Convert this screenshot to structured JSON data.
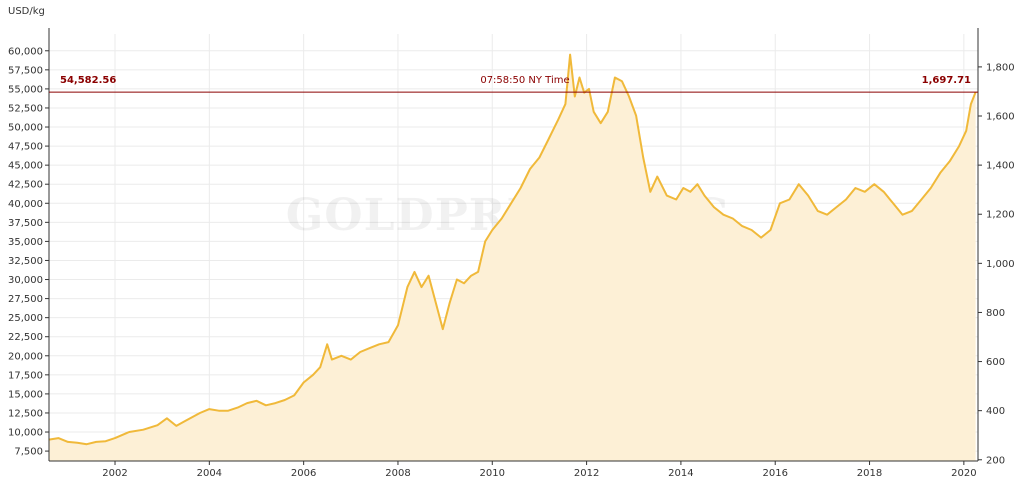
{
  "watermark": "GOLDPRICE.ORG",
  "unit_label": "USD/kg",
  "marker": {
    "left_value": "54,582.56",
    "time": "07:58:50 NY Time",
    "right_value": "1,697.71",
    "color": "#8b0000"
  },
  "colors": {
    "line": "#f0b93a",
    "fill": "#fdf0d6",
    "grid": "#ebebeb",
    "axis": "#333333"
  },
  "chart_data": {
    "type": "area",
    "title": "",
    "xlabel": "",
    "ylabel": "USD/kg",
    "ylabel_right": "",
    "xlim": [
      2000.6,
      2020.3
    ],
    "ylim": [
      6200,
      62200
    ],
    "y2lim": [
      195,
      1934
    ],
    "grid": true,
    "x_ticks": [
      2002,
      2004,
      2006,
      2008,
      2010,
      2012,
      2014,
      2016,
      2018,
      2020
    ],
    "x_tick_labels": [
      "2002",
      "2004",
      "2006",
      "2008",
      "2010",
      "2012",
      "2014",
      "2016",
      "2018",
      "2020"
    ],
    "y_ticks": [
      7500,
      10000,
      12500,
      15000,
      17500,
      20000,
      22500,
      25000,
      27500,
      30000,
      32500,
      35000,
      37500,
      40000,
      42500,
      45000,
      47500,
      50000,
      52500,
      55000,
      57500,
      60000
    ],
    "y_tick_labels": [
      "7,500",
      "10,000",
      "12,500",
      "15,000",
      "17,500",
      "20,000",
      "22,500",
      "25,000",
      "27,500",
      "30,000",
      "32,500",
      "35,000",
      "37,500",
      "40,000",
      "42,500",
      "45,000",
      "47,500",
      "50,000",
      "52,500",
      "55,000",
      "57,500",
      "60,000"
    ],
    "y2_ticks": [
      200,
      400,
      600,
      800,
      1000,
      1200,
      1400,
      1600,
      1800
    ],
    "y2_tick_labels": [
      "200",
      "400",
      "600",
      "800",
      "1,000",
      "1,200",
      "1,400",
      "1,600",
      "1,800"
    ],
    "series": [
      {
        "x": [
          2000.6,
          2000.8,
          2001.0,
          2001.2,
          2001.4,
          2001.6,
          2001.8,
          2002.0,
          2002.3,
          2002.6,
          2002.9,
          2003.1,
          2003.3,
          2003.5,
          2003.8,
          2004.0,
          2004.2,
          2004.4,
          2004.6,
          2004.8,
          2005.0,
          2005.2,
          2005.4,
          2005.6,
          2005.8,
          2006.0,
          2006.2,
          2006.35,
          2006.5,
          2006.6,
          2006.8,
          2007.0,
          2007.2,
          2007.4,
          2007.6,
          2007.8,
          2008.0,
          2008.1,
          2008.2,
          2008.35,
          2008.5,
          2008.65,
          2008.8,
          2008.95,
          2009.1,
          2009.25,
          2009.4,
          2009.55,
          2009.7,
          2009.85,
          2010.0,
          2010.2,
          2010.4,
          2010.6,
          2010.8,
          2011.0,
          2011.2,
          2011.4,
          2011.55,
          2011.65,
          2011.75,
          2011.85,
          2011.95,
          2012.05,
          2012.15,
          2012.3,
          2012.45,
          2012.6,
          2012.75,
          2012.9,
          2013.05,
          2013.2,
          2013.35,
          2013.5,
          2013.7,
          2013.9,
          2014.05,
          2014.2,
          2014.35,
          2014.5,
          2014.7,
          2014.9,
          2015.1,
          2015.3,
          2015.5,
          2015.7,
          2015.9,
          2016.1,
          2016.3,
          2016.5,
          2016.7,
          2016.9,
          2017.1,
          2017.3,
          2017.5,
          2017.7,
          2017.9,
          2018.1,
          2018.3,
          2018.5,
          2018.7,
          2018.9,
          2019.1,
          2019.3,
          2019.5,
          2019.7,
          2019.9,
          2020.05,
          2020.15,
          2020.25
        ],
        "values": [
          9000,
          9200,
          8700,
          8600,
          8400,
          8700,
          8800,
          9200,
          10000,
          10300,
          10900,
          11800,
          10800,
          11500,
          12500,
          13000,
          12800,
          12800,
          13200,
          13800,
          14100,
          13500,
          13800,
          14200,
          14800,
          16500,
          17500,
          18500,
          21500,
          19500,
          20000,
          19500,
          20500,
          21000,
          21500,
          21800,
          24000,
          26500,
          29000,
          31000,
          29000,
          30500,
          27000,
          23500,
          27000,
          30000,
          29500,
          30500,
          31000,
          35000,
          36500,
          38000,
          40000,
          42000,
          44500,
          46000,
          48500,
          51000,
          53000,
          59500,
          54000,
          56500,
          54500,
          55000,
          52000,
          50500,
          52000,
          56500,
          56000,
          54000,
          51500,
          46000,
          41500,
          43500,
          41000,
          40500,
          42000,
          41500,
          42500,
          41000,
          39500,
          38500,
          38000,
          37000,
          36500,
          35500,
          36500,
          40000,
          40500,
          42500,
          41000,
          39000,
          38500,
          39500,
          40500,
          42000,
          41500,
          42500,
          41500,
          40000,
          38500,
          39000,
          40500,
          42000,
          44000,
          45500,
          47500,
          49500,
          53000,
          54582.56
        ]
      }
    ]
  }
}
